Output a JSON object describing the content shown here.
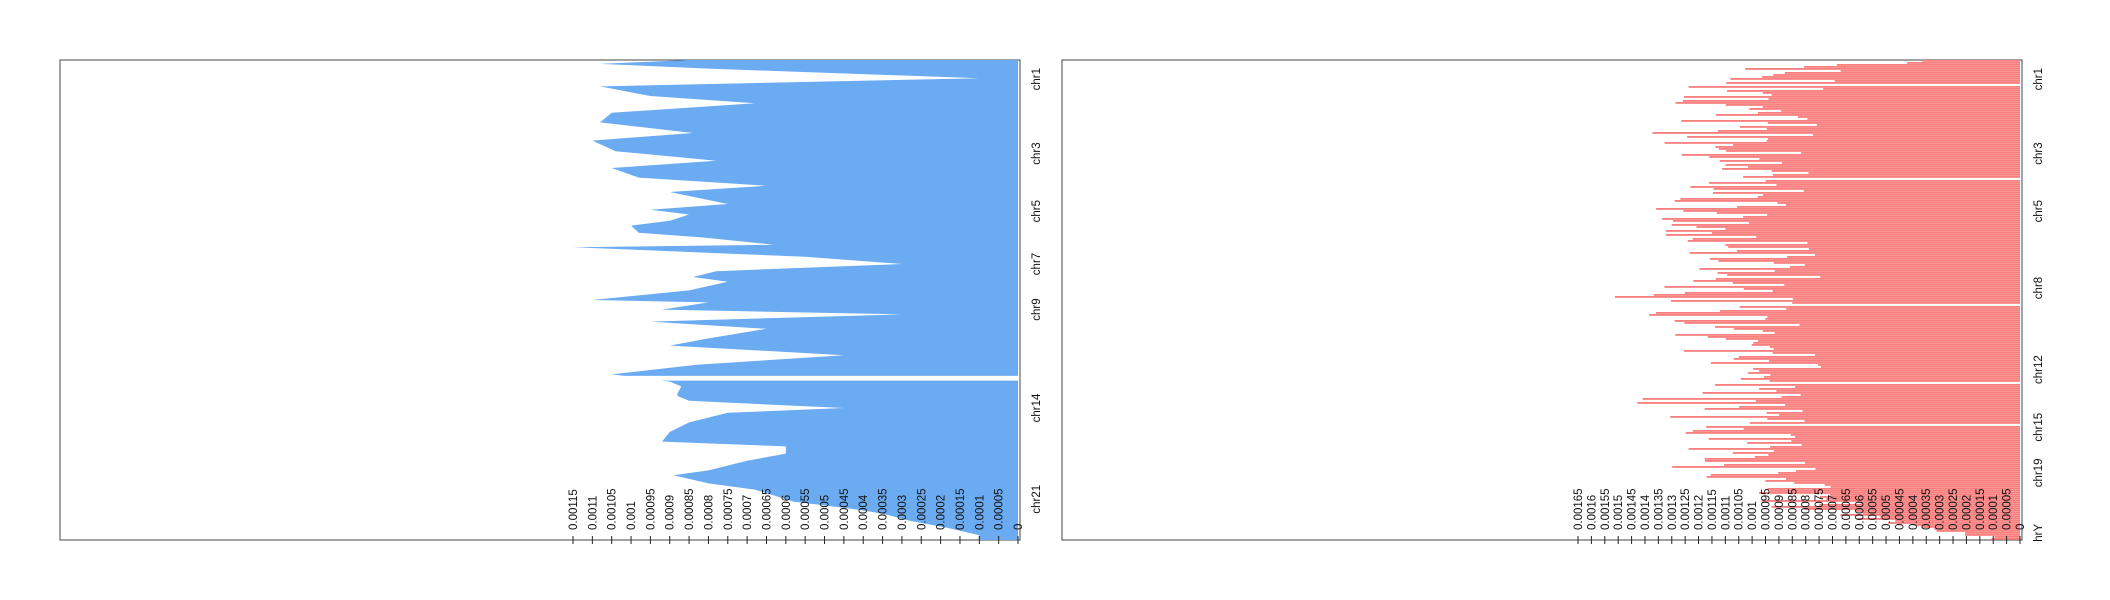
{
  "chart_data": [
    {
      "type": "area",
      "fill_color": "#6aabf2",
      "orientation": "horizontal",
      "x_reversed": true,
      "xlim": [
        0,
        0.00115
      ],
      "x_ticks": [
        {
          "v": 0.00115,
          "label": "0.00115"
        },
        {
          "v": 0.0011,
          "label": "0.0011"
        },
        {
          "v": 0.00105,
          "label": "0.00105"
        },
        {
          "v": 0.001,
          "label": "0.001"
        },
        {
          "v": 0.00095,
          "label": "0.00095"
        },
        {
          "v": 0.0009,
          "label": "0.0009"
        },
        {
          "v": 0.00085,
          "label": "0.00085"
        },
        {
          "v": 0.0008,
          "label": "0.0008"
        },
        {
          "v": 0.00075,
          "label": "0.00075"
        },
        {
          "v": 0.0007,
          "label": "0.0007"
        },
        {
          "v": 0.00065,
          "label": "0.00065"
        },
        {
          "v": 0.0006,
          "label": "0.0006"
        },
        {
          "v": 0.00055,
          "label": "0.00055"
        },
        {
          "v": 0.0005,
          "label": "0.0005"
        },
        {
          "v": 0.00045,
          "label": "0.00045"
        },
        {
          "v": 0.0004,
          "label": "0.0004"
        },
        {
          "v": 0.00035,
          "label": "0.00035"
        },
        {
          "v": 0.0003,
          "label": "0.0003"
        },
        {
          "v": 0.00025,
          "label": "0.00025"
        },
        {
          "v": 0.0002,
          "label": "0.0002"
        },
        {
          "v": 0.00015,
          "label": "0.00015"
        },
        {
          "v": 0.0001,
          "label": "0.0001"
        },
        {
          "v": 5e-05,
          "label": "0.00005"
        },
        {
          "v": 0,
          "label": "0"
        }
      ],
      "y_labels": [
        {
          "label": "chr1",
          "pos": 0.04
        },
        {
          "label": "chr3",
          "pos": 0.195
        },
        {
          "label": "chr5",
          "pos": 0.315
        },
        {
          "label": "chr7",
          "pos": 0.425
        },
        {
          "label": "chr9",
          "pos": 0.52
        },
        {
          "label": "chr14",
          "pos": 0.725
        },
        {
          "label": "chr21",
          "pos": 0.915
        }
      ],
      "points": [
        [
          0,
          0.00085
        ],
        [
          0.008,
          0.00108
        ],
        [
          0.018,
          0.0008
        ],
        [
          0.038,
          0.0001
        ],
        [
          0.055,
          0.00108
        ],
        [
          0.075,
          0.00095
        ],
        [
          0.09,
          0.00068
        ],
        [
          0.11,
          0.00105
        ],
        [
          0.13,
          0.00108
        ],
        [
          0.152,
          0.00084
        ],
        [
          0.168,
          0.0011
        ],
        [
          0.19,
          0.00104
        ],
        [
          0.21,
          0.00078
        ],
        [
          0.225,
          0.00105
        ],
        [
          0.245,
          0.00098
        ],
        [
          0.262,
          0.00065
        ],
        [
          0.275,
          0.0009
        ],
        [
          0.3,
          0.00075
        ],
        [
          0.312,
          0.00095
        ],
        [
          0.322,
          0.00085
        ],
        [
          0.335,
          0.0009
        ],
        [
          0.345,
          0.001
        ],
        [
          0.36,
          0.00098
        ],
        [
          0.37,
          0.00081
        ],
        [
          0.385,
          0.00063
        ],
        [
          0.39,
          0.00115
        ],
        [
          0.41,
          0.00055
        ],
        [
          0.425,
          0.0003
        ],
        [
          0.44,
          0.00078
        ],
        [
          0.452,
          0.00084
        ],
        [
          0.462,
          0.00075
        ],
        [
          0.48,
          0.00085
        ],
        [
          0.5,
          0.0011
        ],
        [
          0.505,
          0.0008
        ],
        [
          0.52,
          0.00092
        ],
        [
          0.53,
          0.0003
        ],
        [
          0.545,
          0.00095
        ],
        [
          0.56,
          0.00065
        ],
        [
          0.58,
          0.0008
        ],
        [
          0.595,
          0.0009
        ],
        [
          0.615,
          0.00045
        ],
        [
          0.635,
          0.00083
        ],
        [
          0.655,
          0.00105
        ],
        [
          0.67,
          0.0009
        ],
        [
          0.68,
          0.00087
        ],
        [
          0.695,
          0.00088
        ],
        [
          0.7,
          0.00088
        ],
        [
          0.71,
          0.00085
        ],
        [
          0.725,
          0.00045
        ],
        [
          0.735,
          0.00075
        ],
        [
          0.755,
          0.00085
        ],
        [
          0.775,
          0.0009
        ],
        [
          0.795,
          0.00092
        ],
        [
          0.805,
          0.0006
        ],
        [
          0.82,
          0.0006
        ],
        [
          0.835,
          0.0007
        ],
        [
          0.855,
          0.0008
        ],
        [
          0.865,
          0.00089
        ],
        [
          0.882,
          0.0008
        ],
        [
          0.895,
          0.00068
        ],
        [
          0.92,
          0.00058
        ],
        [
          0.935,
          0.00043
        ],
        [
          0.945,
          0.00035
        ],
        [
          0.96,
          0.00028
        ],
        [
          0.975,
          0.00018
        ],
        [
          0.99,
          0.0001
        ],
        [
          1.0,
          0.0001
        ]
      ],
      "gaps": [
        [
          0.658,
          0.668
        ]
      ]
    },
    {
      "type": "bar",
      "fill_color": "#fa8080",
      "orientation": "horizontal",
      "x_reversed": true,
      "xlim": [
        0,
        0.00165
      ],
      "x_ticks": [
        {
          "v": 0.00165,
          "label": "0.00165"
        },
        {
          "v": 0.0016,
          "label": "0.0016"
        },
        {
          "v": 0.00155,
          "label": "0.00155"
        },
        {
          "v": 0.0015,
          "label": "0.0015"
        },
        {
          "v": 0.00145,
          "label": "0.00145"
        },
        {
          "v": 0.0014,
          "label": "0.0014"
        },
        {
          "v": 0.00135,
          "label": "0.00135"
        },
        {
          "v": 0.0013,
          "label": "0.0013"
        },
        {
          "v": 0.00125,
          "label": "0.00125"
        },
        {
          "v": 0.0012,
          "label": "0.0012"
        },
        {
          "v": 0.00115,
          "label": "0.00115"
        },
        {
          "v": 0.0011,
          "label": "0.0011"
        },
        {
          "v": 0.00105,
          "label": "0.00105"
        },
        {
          "v": 0.001,
          "label": "0.001"
        },
        {
          "v": 0.00095,
          "label": "0.00095"
        },
        {
          "v": 0.0009,
          "label": "0.0009"
        },
        {
          "v": 0.00085,
          "label": "0.00085"
        },
        {
          "v": 0.0008,
          "label": "0.0008"
        },
        {
          "v": 0.00075,
          "label": "0.00075"
        },
        {
          "v": 0.0007,
          "label": "0.0007"
        },
        {
          "v": 0.00065,
          "label": "0.00065"
        },
        {
          "v": 0.0006,
          "label": "0.0006"
        },
        {
          "v": 0.00055,
          "label": "0.00055"
        },
        {
          "v": 0.0005,
          "label": "0.0005"
        },
        {
          "v": 0.00045,
          "label": "0.00045"
        },
        {
          "v": 0.0004,
          "label": "0.0004"
        },
        {
          "v": 0.00035,
          "label": "0.00035"
        },
        {
          "v": 0.0003,
          "label": "0.0003"
        },
        {
          "v": 0.00025,
          "label": "0.00025"
        },
        {
          "v": 0.0002,
          "label": "0.0002"
        },
        {
          "v": 0.00015,
          "label": "0.00015"
        },
        {
          "v": 0.0001,
          "label": "0.0001"
        },
        {
          "v": 5e-05,
          "label": "0.00005"
        },
        {
          "v": 0,
          "label": "0"
        }
      ],
      "y_labels": [
        {
          "label": "chr1",
          "pos": 0.04
        },
        {
          "label": "chr3",
          "pos": 0.195
        },
        {
          "label": "chr5",
          "pos": 0.315
        },
        {
          "label": "chr8",
          "pos": 0.475
        },
        {
          "label": "chr12",
          "pos": 0.645
        },
        {
          "label": "chr15",
          "pos": 0.765
        },
        {
          "label": "chr19",
          "pos": 0.86
        },
        {
          "label": "hrY",
          "pos": 0.985
        }
      ],
      "num_bars": 240,
      "envelope": [
        [
          0,
          0.0006
        ],
        [
          0.02,
          0.0011
        ],
        [
          0.05,
          0.00125
        ],
        [
          0.1,
          0.0013
        ],
        [
          0.15,
          0.0014
        ],
        [
          0.2,
          0.0013
        ],
        [
          0.25,
          0.0012
        ],
        [
          0.3,
          0.00145
        ],
        [
          0.35,
          0.0014
        ],
        [
          0.4,
          0.0013
        ],
        [
          0.45,
          0.00125
        ],
        [
          0.5,
          0.00155
        ],
        [
          0.55,
          0.0013
        ],
        [
          0.6,
          0.0013
        ],
        [
          0.65,
          0.0012
        ],
        [
          0.7,
          0.0015
        ],
        [
          0.75,
          0.00145
        ],
        [
          0.8,
          0.0014
        ],
        [
          0.85,
          0.0013
        ],
        [
          0.9,
          0.00105
        ],
        [
          0.94,
          0.0009
        ],
        [
          0.97,
          0.00045
        ],
        [
          1.0,
          0.0001
        ]
      ],
      "gaps": [
        [
          0.05,
          0.054
        ],
        [
          0.245,
          0.25
        ],
        [
          0.51,
          0.514
        ],
        [
          0.67,
          0.675
        ],
        [
          0.758,
          0.762
        ]
      ]
    }
  ]
}
